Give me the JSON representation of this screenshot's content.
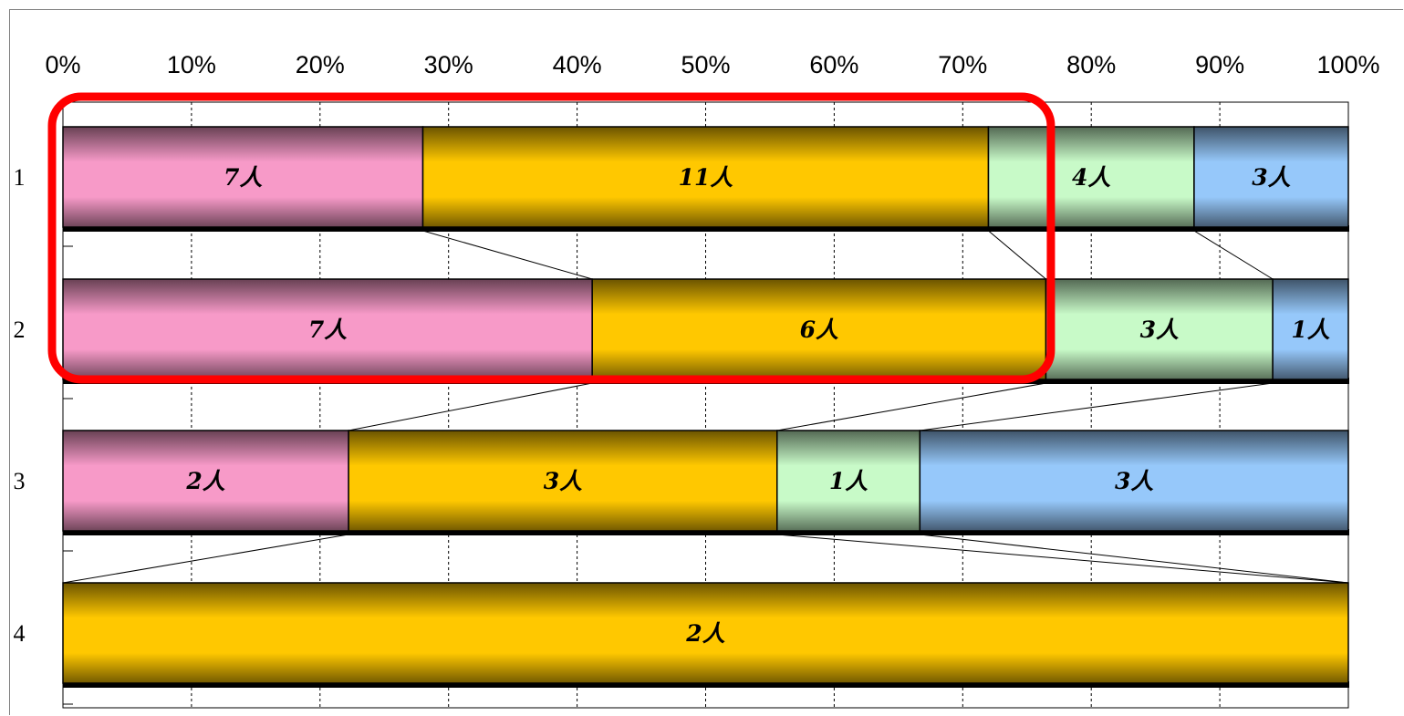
{
  "chart_data": {
    "type": "bar",
    "orientation": "horizontal",
    "stacked": "percent",
    "categories": [
      "1",
      "2",
      "3",
      "4"
    ],
    "x_ticks": [
      "0%",
      "10%",
      "20%",
      "30%",
      "40%",
      "50%",
      "60%",
      "70%",
      "80%",
      "90%",
      "100%"
    ],
    "xlim": [
      0,
      100
    ],
    "grid": true,
    "series_lines": true,
    "series": [
      {
        "color": "#f79ac8",
        "values": [
          7,
          7,
          2,
          0
        ],
        "labels": [
          "7人",
          "7人",
          "2人",
          ""
        ]
      },
      {
        "color": "#ffc800",
        "values": [
          11,
          6,
          3,
          2
        ],
        "labels": [
          "11人",
          "6人",
          "3人",
          "2人"
        ]
      },
      {
        "color": "#c8fac8",
        "values": [
          4,
          3,
          1,
          0
        ],
        "labels": [
          "4人",
          "3人",
          "1人",
          ""
        ]
      },
      {
        "color": "#96c8fa",
        "values": [
          3,
          1,
          3,
          0
        ],
        "labels": [
          "3人",
          "1人",
          "3人",
          ""
        ]
      }
    ],
    "highlight": {
      "color": "#ff0000",
      "rows": [
        "1",
        "2"
      ],
      "x_range_percent": [
        0,
        77
      ]
    }
  }
}
